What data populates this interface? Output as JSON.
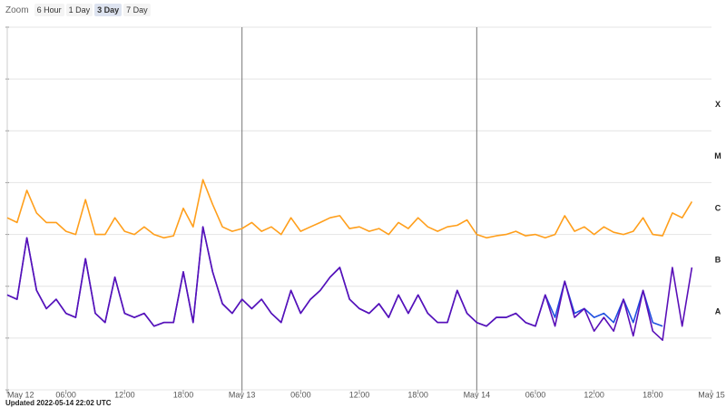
{
  "zoom": {
    "label": "Zoom",
    "options": [
      "6 Hour",
      "1 Day",
      "3 Day",
      "7 Day"
    ],
    "selected": 2
  },
  "updated": "Updated 2022-05-14 22:02 UTC",
  "chart_data": {
    "type": "line",
    "yscale": "log",
    "grid": true,
    "x": [
      0,
      1,
      2,
      3,
      4,
      5,
      6,
      7,
      8,
      9,
      10,
      11,
      12,
      13,
      14,
      15,
      16,
      17,
      18,
      19,
      20,
      21,
      22,
      23,
      24,
      25,
      26,
      27,
      28,
      29,
      30,
      31,
      32,
      33,
      34,
      35,
      36,
      37,
      38,
      39,
      40,
      41,
      42,
      43,
      44,
      45,
      46,
      47,
      48,
      49,
      50,
      51,
      52,
      53,
      54,
      55,
      56,
      57,
      58,
      59,
      60,
      61,
      62,
      63,
      64,
      65,
      66,
      67,
      68,
      69,
      70
    ],
    "xlim": [
      0,
      72
    ],
    "xticks": [
      {
        "value": 0,
        "label": "May 12"
      },
      {
        "value": 6,
        "label": "06:00"
      },
      {
        "value": 12,
        "label": "12:00"
      },
      {
        "value": 18,
        "label": "18:00"
      },
      {
        "value": 24,
        "label": "May 13"
      },
      {
        "value": 30,
        "label": "06:00"
      },
      {
        "value": 36,
        "label": "12:00"
      },
      {
        "value": 42,
        "label": "18:00"
      },
      {
        "value": 48,
        "label": "May 14"
      },
      {
        "value": 54,
        "label": "06:00"
      },
      {
        "value": 60,
        "label": "12:00"
      },
      {
        "value": 66,
        "label": "18:00"
      },
      {
        "value": 72,
        "label": "May 15"
      }
    ],
    "ylim": [
      1e-09,
      0.01
    ],
    "yticks": [
      1e-09,
      1e-08,
      1e-07,
      1e-06,
      1e-05,
      0.0001,
      0.001,
      0.01
    ],
    "class_labels": [
      {
        "label": "X",
        "from": 0.0001
      },
      {
        "label": "M",
        "from": 1e-05
      },
      {
        "label": "C",
        "from": 1e-06
      },
      {
        "label": "B",
        "from": 1e-07
      },
      {
        "label": "A",
        "from": 1e-08
      }
    ],
    "series": [
      {
        "color": "#ff9f1c",
        "values": [
          2.1e-06,
          1.7e-06,
          7.1e-06,
          2.6e-06,
          1.7e-06,
          1.7e-06,
          1.15e-06,
          1e-06,
          4.7e-06,
          1e-06,
          1e-06,
          2.1e-06,
          1.15e-06,
          1e-06,
          1.4e-06,
          1e-06,
          8.6e-07,
          9.4e-07,
          3.2e-06,
          1.4e-06,
          1.14e-05,
          3.8e-06,
          1.4e-06,
          1.15e-06,
          1.3e-06,
          1.7e-06,
          1.15e-06,
          1.4e-06,
          1e-06,
          2.1e-06,
          1.15e-06,
          1.4e-06,
          1.7e-06,
          2.1e-06,
          2.3e-06,
          1.3e-06,
          1.4e-06,
          1.15e-06,
          1.3e-06,
          1e-06,
          1.7e-06,
          1.3e-06,
          2.1e-06,
          1.4e-06,
          1.15e-06,
          1.4e-06,
          1.5e-06,
          1.9e-06,
          1e-06,
          8.6e-07,
          9.4e-07,
          1e-06,
          1.15e-06,
          9.4e-07,
          1e-06,
          8.6e-07,
          1e-06,
          2.3e-06,
          1.15e-06,
          1.4e-06,
          1e-06,
          1.4e-06,
          1.1e-06,
          1e-06,
          1.15e-06,
          2.1e-06,
          1e-06,
          9.4e-07,
          2.6e-06,
          2.1e-06,
          4.3e-06
        ]
      },
      {
        "color": "#1f4fe0",
        "values": [
          6.8e-08,
          5.6e-08,
          8.6e-07,
          8.3e-08,
          3.7e-08,
          5.6e-08,
          3e-08,
          2.5e-08,
          3.4e-07,
          3e-08,
          2e-08,
          1.5e-07,
          3e-08,
          2.5e-08,
          3e-08,
          1.7e-08,
          2e-08,
          2e-08,
          1.9e-07,
          2e-08,
          1.4e-06,
          1.9e-07,
          4.6e-08,
          3e-08,
          5.6e-08,
          3.7e-08,
          5.6e-08,
          3e-08,
          2e-08,
          8.3e-08,
          3e-08,
          5.6e-08,
          8.3e-08,
          1.5e-07,
          2.3e-07,
          5.6e-08,
          3.7e-08,
          3e-08,
          4.6e-08,
          2.5e-08,
          6.8e-08,
          3e-08,
          6.8e-08,
          3e-08,
          2e-08,
          2e-08,
          8.3e-08,
          3e-08,
          2e-08,
          1.7e-08,
          2.5e-08,
          2.5e-08,
          3e-08,
          2e-08,
          1.7e-08,
          6.8e-08,
          2.5e-08,
          1.25e-07,
          3e-08,
          3.7e-08,
          2.5e-08,
          3e-08,
          2e-08,
          5.6e-08,
          2e-08,
          8.3e-08,
          2e-08,
          1.7e-08,
          null,
          null,
          null
        ]
      },
      {
        "color": "#5a0fb8",
        "values": [
          6.8e-08,
          5.6e-08,
          8.6e-07,
          8.3e-08,
          3.7e-08,
          5.6e-08,
          3e-08,
          2.5e-08,
          3.4e-07,
          3e-08,
          2e-08,
          1.5e-07,
          3e-08,
          2.5e-08,
          3e-08,
          1.7e-08,
          2e-08,
          2e-08,
          1.9e-07,
          2e-08,
          1.4e-06,
          1.9e-07,
          4.6e-08,
          3e-08,
          5.6e-08,
          3.7e-08,
          5.6e-08,
          3e-08,
          2e-08,
          8.3e-08,
          3e-08,
          5.6e-08,
          8.3e-08,
          1.5e-07,
          2.3e-07,
          5.6e-08,
          3.7e-08,
          3e-08,
          4.6e-08,
          2.5e-08,
          6.8e-08,
          3e-08,
          6.8e-08,
          3e-08,
          2e-08,
          2e-08,
          8.3e-08,
          3e-08,
          2e-08,
          1.7e-08,
          2.5e-08,
          2.5e-08,
          3e-08,
          2e-08,
          1.7e-08,
          6.8e-08,
          1.7e-08,
          1.25e-07,
          2.5e-08,
          3.7e-08,
          1.36e-08,
          2.5e-08,
          1.36e-08,
          5.6e-08,
          1.1e-08,
          8.3e-08,
          1.36e-08,
          9.1e-09,
          2.3e-07,
          1.7e-08,
          2.3e-07
        ]
      }
    ]
  }
}
